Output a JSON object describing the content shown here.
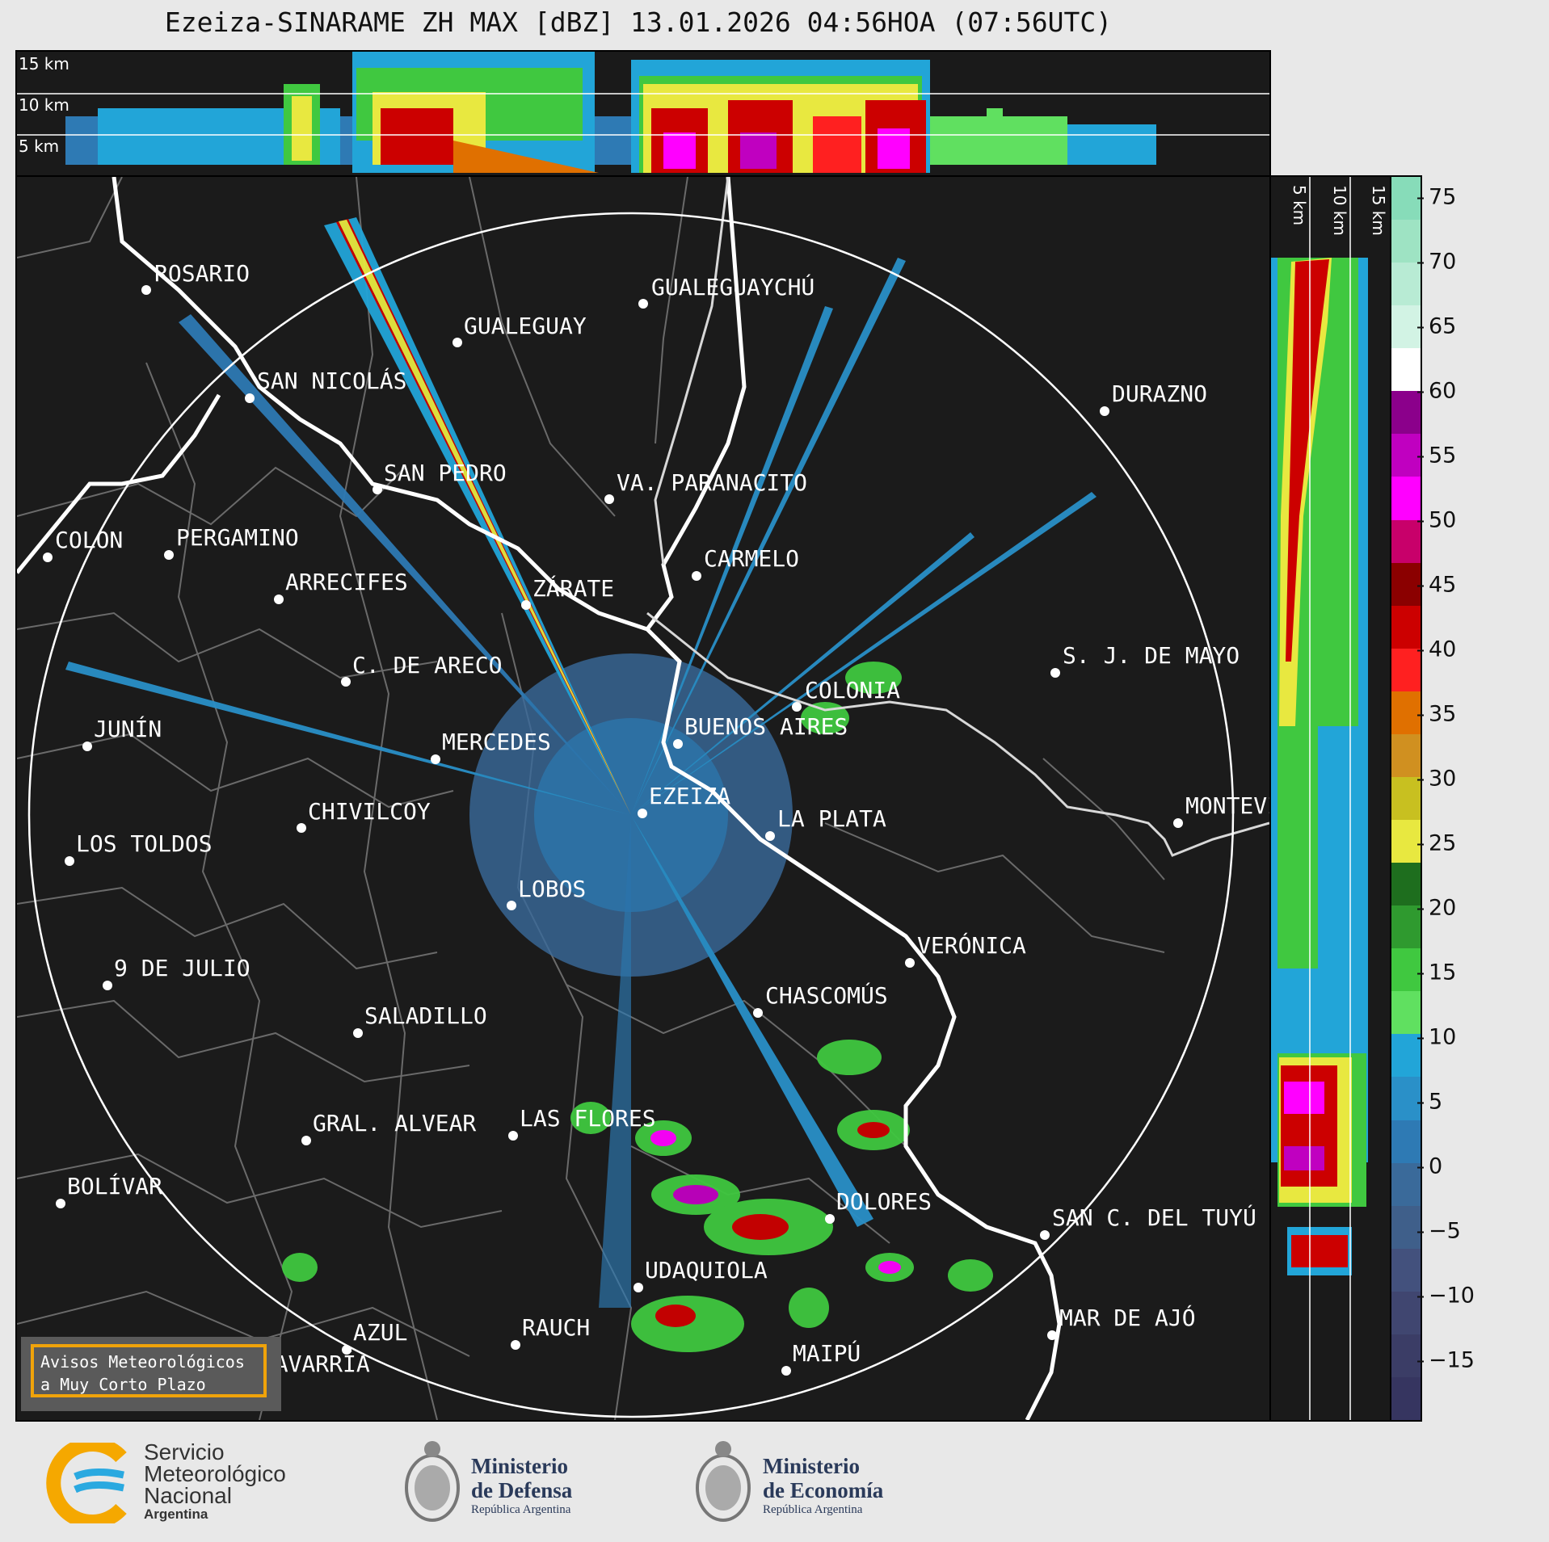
{
  "title": "Ezeiza-SINARAME ZH MAX [dBZ] 13.01.2026 04:56HOA (07:56UTC)",
  "top_panel": {
    "altitudes": [
      "15 km",
      "10 km",
      "5 km"
    ]
  },
  "side_panel": {
    "altitudes": [
      "5 km",
      "10 km",
      "15 km"
    ]
  },
  "colorbar": {
    "unit": "dBZ",
    "ticks": [
      "75",
      "70",
      "65",
      "60",
      "55",
      "50",
      "45",
      "40",
      "35",
      "30",
      "25",
      "20",
      "15",
      "10",
      "5",
      "0",
      "−5",
      "−10",
      "−15"
    ],
    "colors": [
      "#87dcb9",
      "#9ee3c3",
      "#b8ebd4",
      "#d2f3e4",
      "#ffffff",
      "#8b008b",
      "#c000c0",
      "#ff00ff",
      "#c8006a",
      "#8b0000",
      "#cc0000",
      "#ff2020",
      "#e07000",
      "#d09020",
      "#c8c020",
      "#e8e840",
      "#1e6e1e",
      "#2f9a2f",
      "#40c840",
      "#60e060",
      "#22a5d8",
      "#2a90c8",
      "#2e7ab4",
      "#3a6a9a",
      "#3f5f8a",
      "#43517d",
      "#404670",
      "#3b3d66",
      "#363560"
    ]
  },
  "cities": [
    {
      "name": "ROSARIO"
    },
    {
      "name": "GUALEGUAY"
    },
    {
      "name": "GUALEGUAYCHÚ"
    },
    {
      "name": "SAN NICOLÁS"
    },
    {
      "name": "DURAZNO"
    },
    {
      "name": "SAN PEDRO"
    },
    {
      "name": "VA. PARANACITO"
    },
    {
      "name": "COLON"
    },
    {
      "name": "PERGAMINO"
    },
    {
      "name": "CARMELO"
    },
    {
      "name": "ARRECIFES"
    },
    {
      "name": "ZÁRATE"
    },
    {
      "name": "S. J. DE MAYO"
    },
    {
      "name": "C. DE ARECO"
    },
    {
      "name": "COLONIA"
    },
    {
      "name": "JUNÍN"
    },
    {
      "name": "BUENOS AIRES"
    },
    {
      "name": "MERCEDES"
    },
    {
      "name": "EZEIZA"
    },
    {
      "name": "MONTEVIDEO"
    },
    {
      "name": "CHIVILCOY"
    },
    {
      "name": "LA PLATA"
    },
    {
      "name": "LOS TOLDOS"
    },
    {
      "name": "LOBOS"
    },
    {
      "name": "VERÓNICA"
    },
    {
      "name": "9 DE JULIO"
    },
    {
      "name": "CHASCOMÚS"
    },
    {
      "name": "SALADILLO"
    },
    {
      "name": "GRAL. ALVEAR"
    },
    {
      "name": "LAS FLORES"
    },
    {
      "name": "BOLÍVAR"
    },
    {
      "name": "DOLORES"
    },
    {
      "name": "SAN C. DEL TUYÚ"
    },
    {
      "name": "UDAQUIOLA"
    },
    {
      "name": "MAR DE AJÓ"
    },
    {
      "name": "AZUL"
    },
    {
      "name": "RAUCH"
    },
    {
      "name": "OLAVARRÍA"
    },
    {
      "name": "MAIPÚ"
    }
  ],
  "warning_box": {
    "line1": "Avisos Meteorológicos",
    "line2": "a Muy Corto Plazo"
  },
  "logos": {
    "smn": {
      "line1": "Servicio",
      "line2": "Meteorológico",
      "line3": "Nacional",
      "line4": "Argentina"
    },
    "defensa": {
      "line1": "Ministerio",
      "line2": "de Defensa",
      "line3": "República Argentina"
    },
    "economia": {
      "line1": "Ministerio",
      "line2": "de Economía",
      "line3": "República Argentina"
    }
  }
}
